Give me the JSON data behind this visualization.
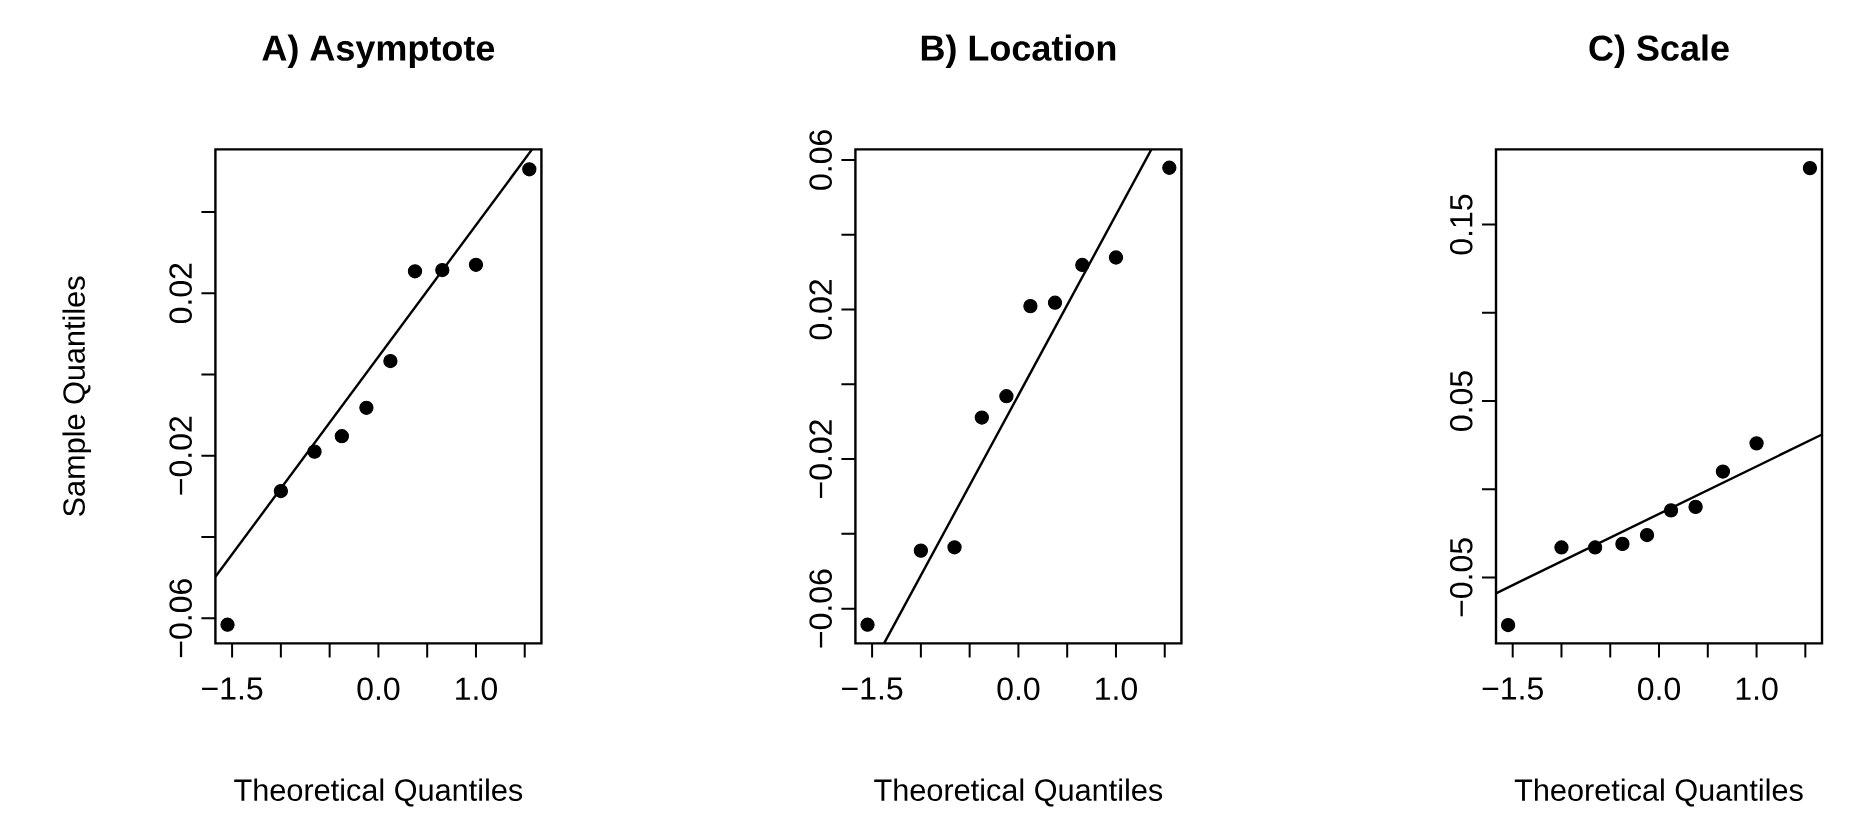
{
  "chart_data": [
    {
      "type": "scatter",
      "title": "A) Asymptote",
      "xlabel": "Theoretical Quantiles",
      "ylabel": "Sample Quantiles",
      "xlim": [
        -1.671,
        1.671
      ],
      "ylim": [
        -0.0662,
        0.0554
      ],
      "xticks": [
        {
          "value": -1.5,
          "label": "−1.5"
        },
        {
          "value": -1.0,
          "label": null
        },
        {
          "value": -0.5,
          "label": null
        },
        {
          "value": 0.0,
          "label": "0.0"
        },
        {
          "value": 0.5,
          "label": null
        },
        {
          "value": 1.0,
          "label": "1.0"
        },
        {
          "value": 1.5,
          "label": null
        }
      ],
      "yticks": [
        {
          "value": -0.06,
          "label": "−0.06"
        },
        {
          "value": -0.04,
          "label": null
        },
        {
          "value": -0.02,
          "label": "−0.02"
        },
        {
          "value": 0.0,
          "label": null
        },
        0.02,
        {
          "value": 0.04,
          "label": null
        }
      ],
      "series": [
        {
          "type": "scatter",
          "marker": "circle",
          "color": "#000000",
          "x": [
            -1.547,
            -1.0,
            -0.655,
            -0.375,
            -0.123,
            0.123,
            0.375,
            0.655,
            1.0,
            1.547
          ],
          "values": [
            -0.0616,
            -0.0287,
            -0.019,
            -0.0152,
            -0.0082,
            0.0033,
            0.0254,
            0.0257,
            0.027,
            0.0505
          ]
        },
        {
          "type": "line",
          "marker": "none",
          "color": "#000000",
          "x": [
            -1.671,
            1.575
          ],
          "values": [
            -0.0498,
            0.0554
          ]
        }
      ]
    },
    {
      "type": "scatter",
      "title": "B) Location",
      "xlabel": "Theoretical Quantiles",
      "xlim": [
        -1.671,
        1.671
      ],
      "ylim": [
        -0.0693,
        0.0628
      ],
      "xticks": [
        {
          "value": -1.5,
          "label": "−1.5"
        },
        {
          "value": -1.0,
          "label": null
        },
        {
          "value": -0.5,
          "label": null
        },
        {
          "value": 0.0,
          "label": "0.0"
        },
        {
          "value": 0.5,
          "label": null
        },
        {
          "value": 1.0,
          "label": "1.0"
        },
        {
          "value": 1.5,
          "label": null
        }
      ],
      "yticks": [
        {
          "value": -0.06,
          "label": "−0.06"
        },
        {
          "value": -0.04,
          "label": null
        },
        {
          "value": -0.02,
          "label": "−0.02"
        },
        {
          "value": 0.0,
          "label": null
        },
        0.02,
        {
          "value": 0.04,
          "label": null
        },
        0.06
      ],
      "series": [
        {
          "type": "scatter",
          "marker": "circle",
          "color": "#000000",
          "x": [
            -1.547,
            -1.0,
            -0.655,
            -0.375,
            -0.123,
            0.123,
            0.375,
            0.655,
            1.0,
            1.547
          ],
          "values": [
            -0.0643,
            -0.0445,
            -0.0436,
            -0.0089,
            -0.0032,
            0.0209,
            0.0218,
            0.0319,
            0.0339,
            0.0579
          ]
        },
        {
          "type": "line",
          "marker": "none",
          "color": "#000000",
          "x": [
            -1.377,
            1.363
          ],
          "values": [
            -0.0693,
            0.0628
          ]
        }
      ]
    },
    {
      "type": "scatter",
      "title": "C) Scale",
      "xlabel": "Theoretical Quantiles",
      "xlim": [
        -1.671,
        1.671
      ],
      "ylim": [
        -0.0874,
        0.1926
      ],
      "xticks": [
        {
          "value": -1.5,
          "label": "−1.5"
        },
        {
          "value": -1.0,
          "label": null
        },
        {
          "value": -0.5,
          "label": null
        },
        {
          "value": 0.0,
          "label": "0.0"
        },
        {
          "value": 0.5,
          "label": null
        },
        {
          "value": 1.0,
          "label": "1.0"
        },
        {
          "value": 1.5,
          "label": null
        }
      ],
      "yticks": [
        {
          "value": -0.05,
          "label": "−0.05"
        },
        {
          "value": 0.0,
          "label": null
        },
        0.05,
        {
          "value": 0.1,
          "label": null
        },
        0.15
      ],
      "series": [
        {
          "type": "scatter",
          "marker": "circle",
          "color": "#000000",
          "x": [
            -1.547,
            -1.0,
            -0.655,
            -0.375,
            -0.123,
            0.123,
            0.375,
            0.655,
            1.0,
            1.547
          ],
          "values": [
            -0.077,
            -0.033,
            -0.033,
            -0.031,
            -0.026,
            -0.012,
            -0.01,
            0.01,
            0.026,
            0.182
          ]
        },
        {
          "type": "line",
          "marker": "none",
          "color": "#000000",
          "x": [
            -1.671,
            1.671
          ],
          "values": [
            -0.059,
            0.031
          ]
        }
      ]
    }
  ]
}
